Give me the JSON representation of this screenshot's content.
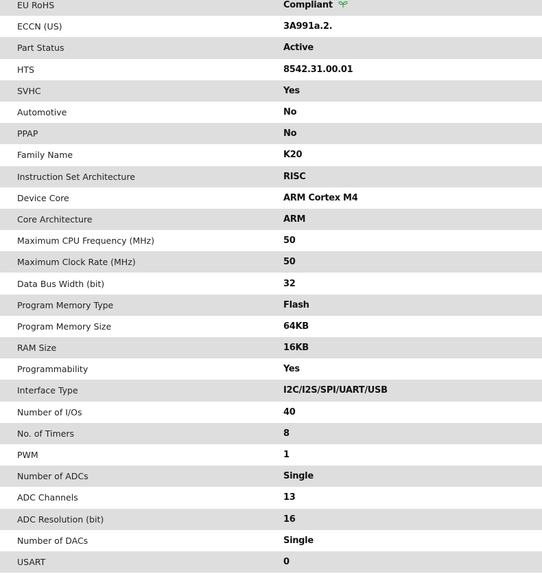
{
  "accent_color": "#3aa655",
  "rows": [
    {
      "label": "EU RoHS",
      "value": "Compliant",
      "icon": "leaf-icon"
    },
    {
      "label": "ECCN (US)",
      "value": "3A991a.2."
    },
    {
      "label": "Part Status",
      "value": "Active"
    },
    {
      "label": "HTS",
      "value": "8542.31.00.01"
    },
    {
      "label": "SVHC",
      "value": "Yes"
    },
    {
      "label": "Automotive",
      "value": "No"
    },
    {
      "label": "PPAP",
      "value": "No"
    },
    {
      "label": "Family Name",
      "value": "K20"
    },
    {
      "label": "Instruction Set Architecture",
      "value": "RISC"
    },
    {
      "label": "Device Core",
      "value": "ARM Cortex M4"
    },
    {
      "label": "Core Architecture",
      "value": "ARM"
    },
    {
      "label": "Maximum CPU Frequency (MHz)",
      "value": "50"
    },
    {
      "label": "Maximum Clock Rate (MHz)",
      "value": "50"
    },
    {
      "label": "Data Bus Width (bit)",
      "value": "32"
    },
    {
      "label": "Program Memory Type",
      "value": "Flash"
    },
    {
      "label": "Program Memory Size",
      "value": "64KB"
    },
    {
      "label": "RAM Size",
      "value": "16KB"
    },
    {
      "label": "Programmability",
      "value": "Yes"
    },
    {
      "label": "Interface Type",
      "value": "I2C/I2S/SPI/UART/USB"
    },
    {
      "label": "Number of I/Os",
      "value": "40"
    },
    {
      "label": "No. of Timers",
      "value": "8"
    },
    {
      "label": "PWM",
      "value": "1"
    },
    {
      "label": "Number of ADCs",
      "value": "Single"
    },
    {
      "label": "ADC Channels",
      "value": "13"
    },
    {
      "label": "ADC Resolution (bit)",
      "value": "16"
    },
    {
      "label": "Number of DACs",
      "value": "Single"
    },
    {
      "label": "USART",
      "value": "0"
    }
  ]
}
